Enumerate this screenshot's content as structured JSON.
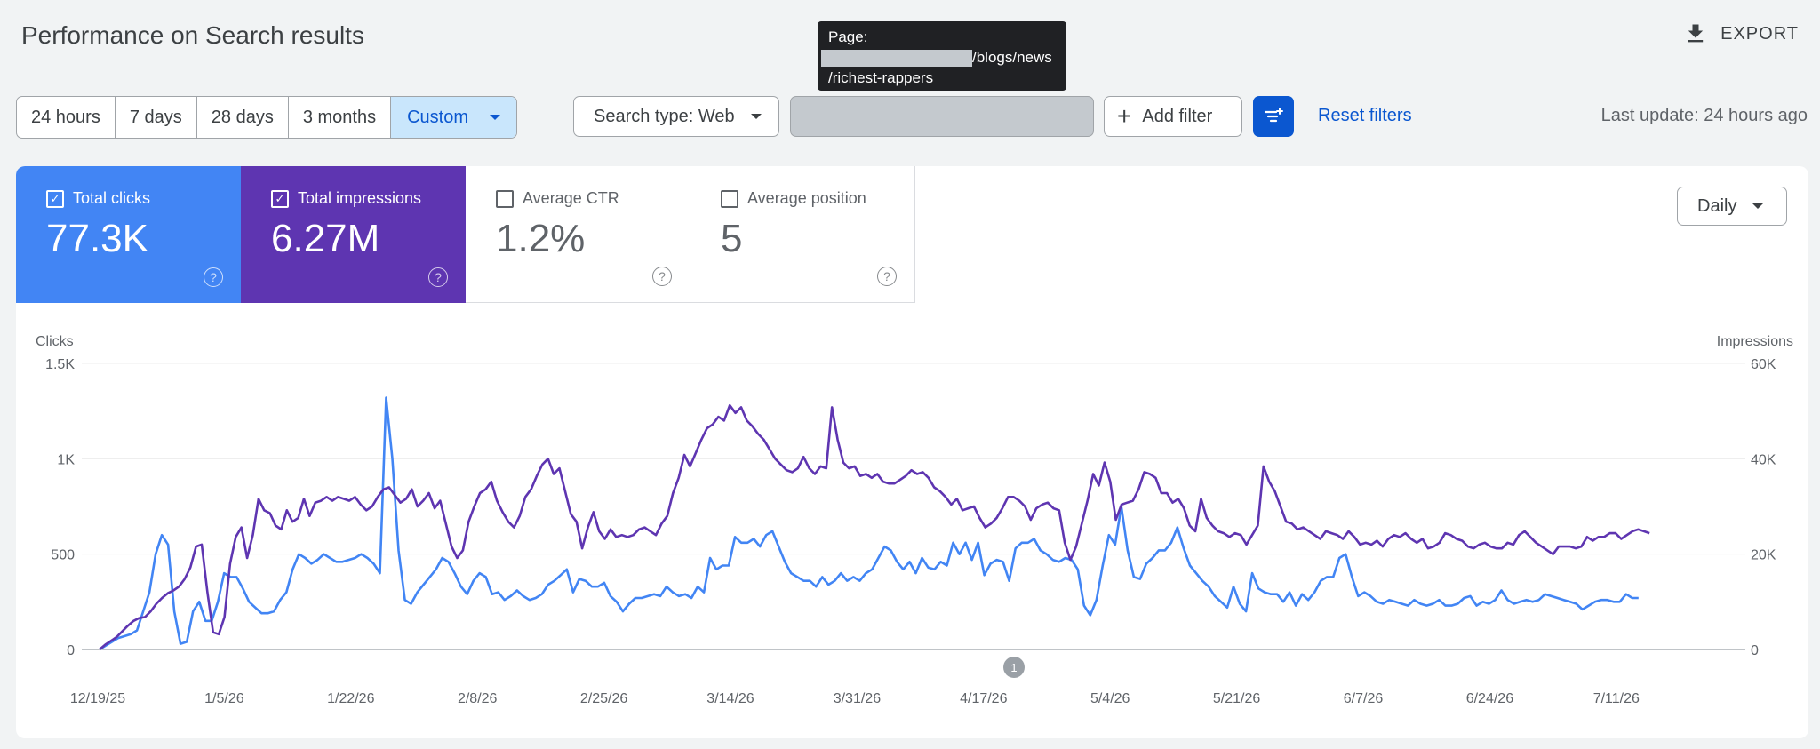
{
  "header": {
    "title": "Performance on Search results",
    "export_label": "EXPORT"
  },
  "tooltip": {
    "line1": "Page:",
    "line2_suffix": "/blogs/news",
    "line3": "/richest-rappers"
  },
  "date_ranges": [
    "24 hours",
    "7 days",
    "28 days",
    "3 months",
    "Custom"
  ],
  "filters": {
    "search_type": "Search type: Web",
    "add_filter": "Add filter",
    "reset": "Reset filters",
    "last_update": "Last update: 24 hours ago"
  },
  "metrics": [
    {
      "label": "Total clicks",
      "value": "77.3K",
      "checked": true,
      "color": "#4285f4"
    },
    {
      "label": "Total impressions",
      "value": "6.27M",
      "checked": true,
      "color": "#5e35b1"
    },
    {
      "label": "Average CTR",
      "value": "1.2%",
      "checked": false
    },
    {
      "label": "Average position",
      "value": "5",
      "checked": false
    }
  ],
  "granularity": "Daily",
  "annotation_marker": "1",
  "chart_data": {
    "type": "line",
    "left_axis": {
      "title": "Clicks",
      "ticks": [
        "0",
        "500",
        "1K",
        "1.5K"
      ],
      "range": [
        0,
        1500
      ]
    },
    "right_axis": {
      "title": "Impressions",
      "ticks": [
        "0",
        "20K",
        "40K",
        "60K"
      ],
      "range": [
        0,
        60000
      ]
    },
    "x_ticks": [
      "12/19/25",
      "1/5/26",
      "1/22/26",
      "2/8/26",
      "2/25/26",
      "3/14/26",
      "3/31/26",
      "4/17/26",
      "5/4/26",
      "5/21/26",
      "6/7/26",
      "6/24/26",
      "7/11/26"
    ],
    "series": [
      {
        "name": "Total clicks",
        "axis": "left",
        "color": "#4285f4",
        "values": [
          0,
          20,
          40,
          60,
          70,
          80,
          100,
          200,
          300,
          500,
          600,
          550,
          200,
          30,
          40,
          200,
          250,
          150,
          150,
          250,
          400,
          380,
          380,
          320,
          250,
          220,
          190,
          190,
          200,
          260,
          300,
          420,
          500,
          480,
          450,
          470,
          500,
          480,
          460,
          460,
          470,
          480,
          500,
          480,
          450,
          400,
          1320,
          1000,
          520,
          260,
          240,
          300,
          340,
          380,
          420,
          480,
          460,
          400,
          330,
          290,
          360,
          400,
          380,
          290,
          300,
          260,
          280,
          310,
          280,
          260,
          270,
          290,
          340,
          360,
          390,
          420,
          300,
          370,
          360,
          330,
          330,
          350,
          280,
          250,
          200,
          240,
          270,
          270,
          280,
          290,
          280,
          330,
          300,
          280,
          290,
          270,
          330,
          300,
          480,
          420,
          440,
          440,
          590,
          560,
          560,
          580,
          540,
          600,
          620,
          540,
          460,
          400,
          380,
          360,
          360,
          330,
          380,
          340,
          360,
          400,
          360,
          380,
          360,
          400,
          420,
          480,
          540,
          520,
          460,
          420,
          460,
          400,
          480,
          430,
          420,
          460,
          440,
          560,
          500,
          560,
          470,
          560,
          390,
          450,
          470,
          460,
          360,
          530,
          560,
          560,
          580,
          520,
          500,
          470,
          460,
          480,
          470,
          420,
          230,
          180,
          260,
          440,
          600,
          550,
          750,
          520,
          380,
          370,
          450,
          480,
          520,
          520,
          560,
          640,
          530,
          440,
          400,
          360,
          330,
          280,
          250,
          220,
          330,
          240,
          200,
          400,
          320,
          300,
          290,
          290,
          250,
          300,
          230,
          290,
          260,
          300,
          360,
          380,
          380,
          480,
          500,
          380,
          280,
          300,
          280,
          250,
          240,
          260,
          250,
          240,
          230,
          260,
          240,
          230,
          240,
          260,
          230,
          230,
          240,
          270,
          280,
          230,
          250,
          240,
          260,
          310,
          260,
          240,
          250,
          260,
          250,
          260,
          290,
          280,
          270,
          260,
          250,
          240,
          210,
          230,
          250,
          260,
          260,
          250,
          250,
          290,
          270,
          270
        ]
      },
      {
        "name": "Total impressions",
        "axis": "right",
        "color": "#5e35b1",
        "values": [
          0,
          1000,
          1800,
          2600,
          3800,
          5000,
          6000,
          6600,
          6800,
          8000,
          9600,
          10800,
          11800,
          12400,
          13200,
          14800,
          17200,
          21600,
          22000,
          12000,
          3600,
          3200,
          6800,
          18000,
          23600,
          25600,
          19200,
          24000,
          31600,
          29200,
          28600,
          26000,
          25200,
          29200,
          26800,
          27600,
          31600,
          28000,
          30800,
          31200,
          32000,
          31200,
          32000,
          31600,
          31200,
          32000,
          30400,
          29200,
          30000,
          32000,
          33600,
          34000,
          32400,
          30800,
          31600,
          33600,
          30000,
          31200,
          32800,
          29600,
          31200,
          26400,
          21600,
          19200,
          20800,
          26800,
          30000,
          32800,
          33600,
          35200,
          31200,
          28800,
          26800,
          25600,
          28000,
          32000,
          33600,
          36400,
          38800,
          40000,
          36800,
          38000,
          33200,
          28400,
          26800,
          21200,
          25600,
          28800,
          24800,
          23200,
          25200,
          23600,
          24000,
          23600,
          24000,
          25200,
          25600,
          24800,
          24000,
          26400,
          28000,
          32800,
          36000,
          40800,
          38400,
          41200,
          44000,
          46400,
          47200,
          48800,
          48000,
          51200,
          49600,
          50800,
          48000,
          46800,
          45200,
          44000,
          42000,
          40000,
          38800,
          37600,
          37200,
          38000,
          40400,
          38000,
          36800,
          38400,
          38000,
          50800,
          44000,
          39200,
          38000,
          38400,
          36400,
          36800,
          36000,
          36800,
          35200,
          34800,
          34800,
          35600,
          36400,
          37600,
          36800,
          37200,
          36000,
          34000,
          33200,
          32000,
          30400,
          31600,
          29200,
          29600,
          30000,
          27600,
          25600,
          26400,
          27600,
          29600,
          32000,
          32000,
          31200,
          30000,
          27200,
          29600,
          30400,
          30800,
          29600,
          29200,
          22400,
          18800,
          21600,
          26400,
          31200,
          36800,
          34400,
          39200,
          35200,
          27200,
          30400,
          30800,
          31200,
          33600,
          37200,
          36800,
          36000,
          32800,
          32800,
          30800,
          31600,
          29600,
          26000,
          24800,
          31600,
          27600,
          26000,
          24800,
          24400,
          23600,
          24400,
          24000,
          22000,
          24000,
          26000,
          38400,
          35200,
          33200,
          30000,
          26800,
          26400,
          25200,
          25600,
          24800,
          24000,
          23200,
          24800,
          24400,
          24000,
          23200,
          24800,
          23600,
          22000,
          22400,
          22000,
          22800,
          21600,
          23200,
          24000,
          23600,
          24400,
          23200,
          22400,
          23200,
          21200,
          21600,
          22400,
          24400,
          24000,
          23200,
          22800,
          21600,
          21200,
          22000,
          22400,
          21600,
          21200,
          21200,
          22400,
          22000,
          24000,
          24800,
          23600,
          22400,
          21600,
          20800,
          20000,
          21600,
          21600,
          21600,
          21200,
          21600,
          23600,
          22800,
          23600,
          23600,
          24400,
          24400,
          23200,
          24000,
          24800,
          25200,
          24800,
          24400
        ]
      }
    ]
  }
}
